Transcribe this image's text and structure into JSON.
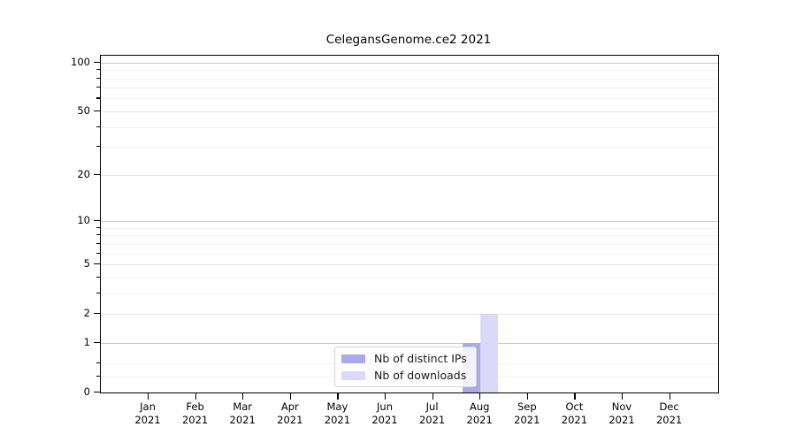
{
  "title": "CelegansGenome.ce2 2021",
  "chart_data": {
    "type": "bar",
    "title": "CelegansGenome.ce2 2021",
    "categories": [
      "Jan 2021",
      "Feb 2021",
      "Mar 2021",
      "Apr 2021",
      "May 2021",
      "Jun 2021",
      "Jul 2021",
      "Aug 2021",
      "Sep 2021",
      "Oct 2021",
      "Nov 2021",
      "Dec 2021"
    ],
    "series": [
      {
        "name": "Nb of distinct IPs",
        "color": "#a9a9ec",
        "values": [
          0,
          0,
          0,
          0,
          0,
          0,
          0,
          1,
          0,
          0,
          0,
          0
        ]
      },
      {
        "name": "Nb of downloads",
        "color": "#dadaf8",
        "values": [
          0,
          0,
          0,
          0,
          0,
          0,
          0,
          2,
          0,
          0,
          0,
          0
        ]
      }
    ],
    "yscale": "log1p",
    "ylim": [
      0,
      110
    ],
    "yticks": [
      0,
      1,
      2,
      5,
      10,
      20,
      50,
      100
    ],
    "decade_ticks": [
      1,
      10,
      100
    ],
    "minor_yticks": [
      0.25,
      0.5,
      3,
      4,
      6,
      7,
      8,
      9,
      30,
      40,
      60,
      70,
      80,
      90
    ],
    "grid": true,
    "legend_position": "bottom-center"
  },
  "legend": {
    "items": [
      {
        "label": "Nb of distinct IPs",
        "color": "#a9a9ec"
      },
      {
        "label": "Nb of downloads",
        "color": "#dadaf8"
      }
    ]
  },
  "colors": {
    "background": "#ffffff",
    "axis_frame": "#000000",
    "grid_decade": "#c9c9c9",
    "grid_major": "#e4e4e4",
    "grid_minor": "#f2f2f2",
    "bar_distinct_ips": "#a9a9ec",
    "bar_downloads": "#dadaf8"
  }
}
